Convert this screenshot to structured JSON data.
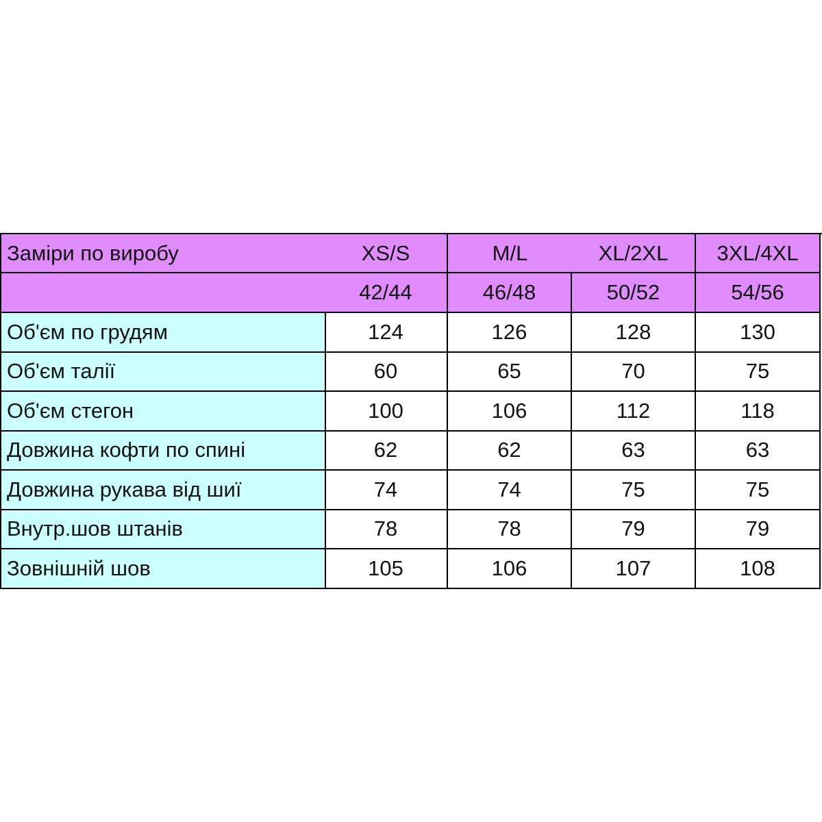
{
  "header": {
    "title": "Заміри по виробу",
    "sizes": [
      "XS/S",
      "M/L",
      "XL/2XL",
      "3XL/4XL"
    ],
    "numbers": [
      "42/44",
      "46/48",
      "50/52",
      "54/56"
    ]
  },
  "table": {
    "rows": [
      {
        "label": "Об'єм по грудям",
        "values": [
          124,
          126,
          128,
          130
        ]
      },
      {
        "label": "Об'єм талії",
        "values": [
          60,
          65,
          70,
          75
        ]
      },
      {
        "label": "Об'єм стегон",
        "values": [
          100,
          106,
          112,
          118
        ]
      },
      {
        "label": "Довжина кофти по спині",
        "values": [
          62,
          62,
          63,
          63
        ]
      },
      {
        "label": "Довжина рукава від шиї",
        "values": [
          74,
          74,
          75,
          75
        ]
      },
      {
        "label": "Внутр.шов штанів",
        "values": [
          78,
          78,
          79,
          79
        ]
      },
      {
        "label": "Зовнішній шов",
        "values": [
          105,
          106,
          107,
          108
        ]
      }
    ]
  }
}
